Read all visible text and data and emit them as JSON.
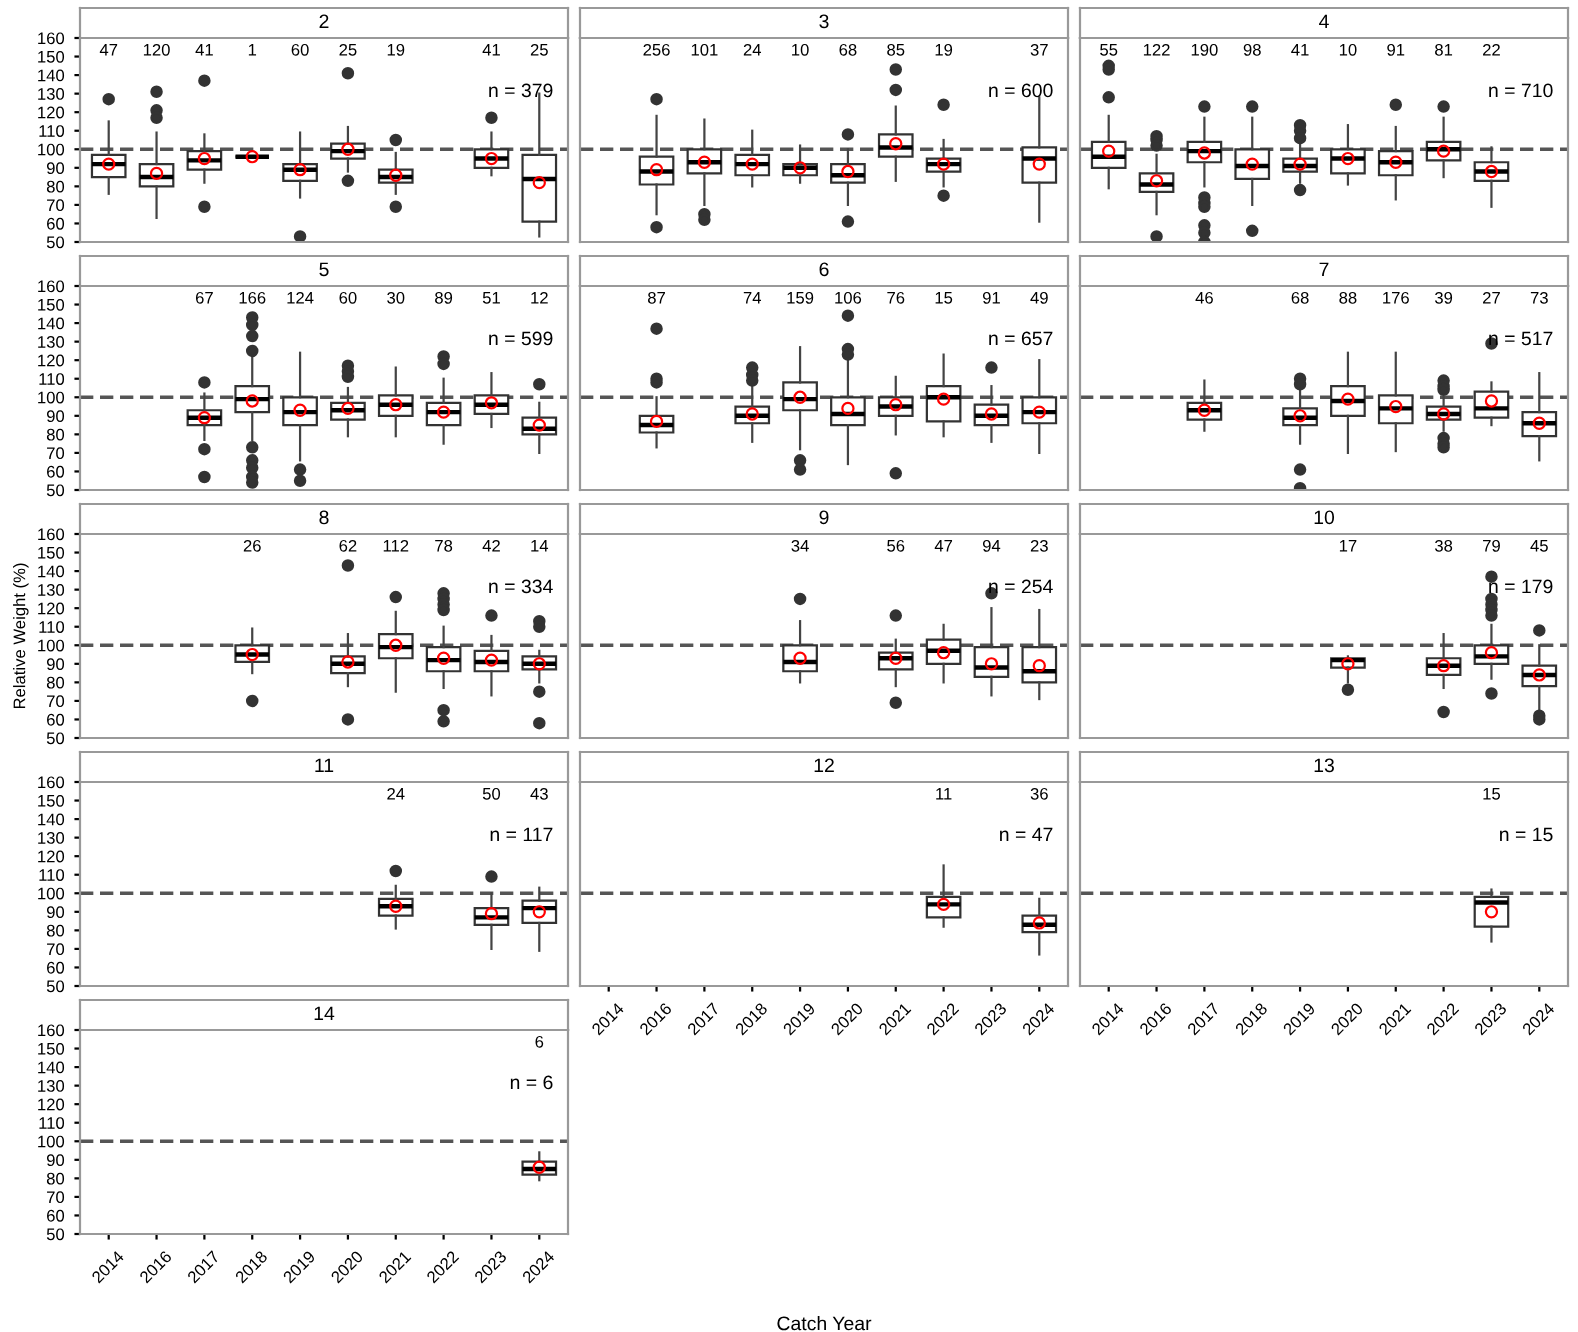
{
  "chart_data": [
    {
      "type": "box",
      "title": "2",
      "categories": [
        "2014",
        "2016",
        "2017",
        "2018",
        "2019",
        "2020",
        "2021",
        "2022",
        "2023",
        "2024"
      ],
      "ylim": [
        50,
        160
      ],
      "yticks": [
        50,
        60,
        70,
        80,
        90,
        100,
        110,
        120,
        130,
        140,
        150,
        160
      ],
      "tick_labels": "y",
      "value_labels": [
        "47",
        "120",
        "41",
        "1",
        "60",
        "25",
        "19",
        null,
        "41",
        "25"
      ],
      "annotations": [
        "n = 379"
      ],
      "ref_lines": [
        {
          "axis": "y",
          "value": 100,
          "line_style": "dashed"
        }
      ],
      "boxes": [
        {
          "low": 76,
          "q1": 85,
          "median": 92,
          "q3": 97,
          "high": 115,
          "mean": 92,
          "outliers": [
            127
          ]
        },
        {
          "low": 63,
          "q1": 80,
          "median": 85,
          "q3": 92,
          "high": 109,
          "mean": 87,
          "outliers": [
            131,
            121,
            117
          ]
        },
        {
          "low": 82,
          "q1": 89,
          "median": 94,
          "q3": 99,
          "high": 108,
          "mean": 95,
          "outliers": [
            137,
            69
          ]
        },
        {
          "low": 96,
          "q1": 96,
          "median": 96,
          "q3": 96,
          "high": 96,
          "mean": 96
        },
        {
          "low": 74,
          "q1": 83,
          "median": 89,
          "q3": 92,
          "high": 109,
          "mean": 89,
          "outliers": [
            53
          ]
        },
        {
          "low": 88,
          "q1": 95,
          "median": 99,
          "q3": 103,
          "high": 112,
          "mean": 100,
          "outliers": [
            141,
            83
          ]
        },
        {
          "low": 76,
          "q1": 82,
          "median": 85,
          "q3": 89,
          "high": 98,
          "mean": 86,
          "outliers": [
            105,
            69
          ]
        },
        null,
        {
          "low": 86,
          "q1": 90,
          "median": 95,
          "q3": 100,
          "high": 109,
          "mean": 95,
          "outliers": [
            117
          ]
        },
        {
          "low": 53,
          "q1": 61,
          "median": 84,
          "q3": 97,
          "high": 130,
          "mean": 82
        }
      ]
    },
    {
      "type": "box",
      "title": "3",
      "categories": [
        "2014",
        "2016",
        "2017",
        "2018",
        "2019",
        "2020",
        "2021",
        "2022",
        "2023",
        "2024"
      ],
      "ylim": [
        50,
        160
      ],
      "yticks": [
        50,
        60,
        70,
        80,
        90,
        100,
        110,
        120,
        130,
        140,
        150,
        160
      ],
      "tick_labels": false,
      "value_labels": [
        null,
        "256",
        "101",
        "24",
        "10",
        "68",
        "85",
        "19",
        null,
        "37"
      ],
      "annotations": [
        "n = 600"
      ],
      "ref_lines": [
        {
          "axis": "y",
          "value": 100,
          "line_style": "dashed"
        }
      ],
      "boxes": [
        null,
        {
          "low": 65,
          "q1": 81,
          "median": 88,
          "q3": 96,
          "high": 118,
          "mean": 89,
          "outliers": [
            127,
            58
          ]
        },
        {
          "low": 70,
          "q1": 87,
          "median": 93,
          "q3": 100,
          "high": 116,
          "mean": 93,
          "outliers": [
            65,
            62
          ]
        },
        {
          "low": 80,
          "q1": 86,
          "median": 92,
          "q3": 97,
          "high": 110,
          "mean": 92
        },
        {
          "low": 82,
          "q1": 86,
          "median": 90,
          "q3": 92,
          "high": 102,
          "mean": 90
        },
        {
          "low": 70,
          "q1": 82,
          "median": 86,
          "q3": 92,
          "high": 100,
          "mean": 88,
          "outliers": [
            108,
            61
          ]
        },
        {
          "low": 83,
          "q1": 96,
          "median": 101,
          "q3": 108,
          "high": 123,
          "mean": 103,
          "outliers": [
            143,
            132
          ]
        },
        {
          "low": 80,
          "q1": 88,
          "median": 92,
          "q3": 95,
          "high": 105,
          "mean": 92,
          "outliers": [
            124,
            75
          ]
        },
        null,
        {
          "low": 61,
          "q1": 82,
          "median": 95,
          "q3": 101,
          "high": 128,
          "mean": 92
        }
      ]
    },
    {
      "type": "box",
      "title": "4",
      "categories": [
        "2014",
        "2016",
        "2017",
        "2018",
        "2019",
        "2020",
        "2021",
        "2022",
        "2023",
        "2024"
      ],
      "ylim": [
        50,
        160
      ],
      "yticks": [
        50,
        60,
        70,
        80,
        90,
        100,
        110,
        120,
        130,
        140,
        150,
        160
      ],
      "tick_labels": false,
      "value_labels": [
        "55",
        "122",
        "190",
        "98",
        "41",
        "10",
        "91",
        "81",
        "22",
        null
      ],
      "annotations": [
        "n = 710"
      ],
      "ref_lines": [
        {
          "axis": "y",
          "value": 100,
          "line_style": "dashed"
        }
      ],
      "boxes": [
        {
          "low": 79,
          "q1": 90,
          "median": 96,
          "q3": 104,
          "high": 118,
          "mean": 99,
          "outliers": [
            145,
            143,
            128
          ]
        },
        {
          "low": 65,
          "q1": 77,
          "median": 81,
          "q3": 87,
          "high": 97,
          "mean": 83,
          "outliers": [
            107,
            105,
            102,
            53
          ]
        },
        {
          "low": 80,
          "q1": 93,
          "median": 99,
          "q3": 104,
          "high": 117,
          "mean": 98,
          "outliers": [
            123,
            74,
            71,
            69,
            59,
            55,
            50
          ]
        },
        {
          "low": 70,
          "q1": 84,
          "median": 91,
          "q3": 100,
          "high": 117,
          "mean": 92,
          "outliers": [
            123,
            56
          ]
        },
        {
          "low": 82,
          "q1": 88,
          "median": 91,
          "q3": 95,
          "high": 104,
          "mean": 92,
          "outliers": [
            113,
            110,
            106,
            78
          ]
        },
        {
          "low": 81,
          "q1": 87,
          "median": 95,
          "q3": 100,
          "high": 113,
          "mean": 95
        },
        {
          "low": 73,
          "q1": 86,
          "median": 93,
          "q3": 99,
          "high": 112,
          "mean": 93,
          "outliers": [
            124
          ]
        },
        {
          "low": 85,
          "q1": 94,
          "median": 100,
          "q3": 104,
          "high": 117,
          "mean": 99,
          "outliers": [
            123
          ]
        },
        {
          "low": 69,
          "q1": 83,
          "median": 88,
          "q3": 93,
          "high": 101,
          "mean": 88
        },
        null
      ]
    },
    {
      "type": "box",
      "title": "5",
      "categories": [
        "2014",
        "2016",
        "2017",
        "2018",
        "2019",
        "2020",
        "2021",
        "2022",
        "2023",
        "2024"
      ],
      "ylim": [
        50,
        160
      ],
      "yticks": [
        50,
        60,
        70,
        80,
        90,
        100,
        110,
        120,
        130,
        140,
        150,
        160
      ],
      "tick_labels": "y",
      "value_labels": [
        null,
        null,
        "67",
        "166",
        "124",
        "60",
        "30",
        "89",
        "51",
        "12"
      ],
      "annotations": [
        "n = 599"
      ],
      "ref_lines": [
        {
          "axis": "y",
          "value": 100,
          "line_style": "dashed"
        }
      ],
      "boxes": [
        null,
        null,
        {
          "low": 77,
          "q1": 85,
          "median": 89,
          "q3": 93,
          "high": 102,
          "mean": 89,
          "outliers": [
            108,
            72,
            57
          ]
        },
        {
          "low": 77,
          "q1": 92,
          "median": 99,
          "q3": 106,
          "high": 122,
          "mean": 98,
          "outliers": [
            143,
            139,
            133,
            125,
            73,
            66,
            62,
            57,
            54
          ]
        },
        {
          "low": 66,
          "q1": 85,
          "median": 92,
          "q3": 100,
          "high": 124,
          "mean": 93,
          "outliers": [
            61,
            55
          ]
        },
        {
          "low": 79,
          "q1": 88,
          "median": 93,
          "q3": 97,
          "high": 105,
          "mean": 94,
          "outliers": [
            117,
            114,
            111
          ]
        },
        {
          "low": 79,
          "q1": 90,
          "median": 96,
          "q3": 101,
          "high": 116,
          "mean": 96
        },
        {
          "low": 75,
          "q1": 85,
          "median": 92,
          "q3": 97,
          "high": 110,
          "mean": 92,
          "outliers": [
            122,
            118
          ]
        },
        {
          "low": 84,
          "q1": 91,
          "median": 96,
          "q3": 101,
          "high": 113,
          "mean": 97
        },
        {
          "low": 70,
          "q1": 80,
          "median": 83,
          "q3": 89,
          "high": 97,
          "mean": 85,
          "outliers": [
            107
          ]
        }
      ]
    },
    {
      "type": "box",
      "title": "6",
      "categories": [
        "2014",
        "2016",
        "2017",
        "2018",
        "2019",
        "2020",
        "2021",
        "2022",
        "2023",
        "2024"
      ],
      "ylim": [
        50,
        160
      ],
      "yticks": [
        50,
        60,
        70,
        80,
        90,
        100,
        110,
        120,
        130,
        140,
        150,
        160
      ],
      "tick_labels": false,
      "value_labels": [
        null,
        "87",
        null,
        "74",
        "159",
        "106",
        "76",
        "15",
        "91",
        "49"
      ],
      "annotations": [
        "n = 657"
      ],
      "ref_lines": [
        {
          "axis": "y",
          "value": 100,
          "line_style": "dashed"
        }
      ],
      "boxes": [
        null,
        {
          "low": 73,
          "q1": 81,
          "median": 85,
          "q3": 90,
          "high": 100,
          "mean": 87,
          "outliers": [
            137,
            110,
            108
          ]
        },
        null,
        {
          "low": 76,
          "q1": 86,
          "median": 90,
          "q3": 95,
          "high": 106,
          "mean": 91,
          "outliers": [
            116,
            112,
            109
          ]
        },
        {
          "low": 72,
          "q1": 93,
          "median": 99,
          "q3": 108,
          "high": 127,
          "mean": 100,
          "outliers": [
            66,
            61
          ]
        },
        {
          "low": 64,
          "q1": 85,
          "median": 91,
          "q3": 100,
          "high": 122,
          "mean": 94,
          "outliers": [
            144,
            126,
            123
          ]
        },
        {
          "low": 80,
          "q1": 90,
          "median": 95,
          "q3": 100,
          "high": 111,
          "mean": 96,
          "outliers": [
            59
          ]
        },
        {
          "low": 79,
          "q1": 87,
          "median": 100,
          "q3": 106,
          "high": 123,
          "mean": 99
        },
        {
          "low": 76,
          "q1": 85,
          "median": 90,
          "q3": 96,
          "high": 106,
          "mean": 91,
          "outliers": [
            116
          ]
        },
        {
          "low": 70,
          "q1": 86,
          "median": 92,
          "q3": 100,
          "high": 120,
          "mean": 92
        }
      ]
    },
    {
      "type": "box",
      "title": "7",
      "categories": [
        "2014",
        "2016",
        "2017",
        "2018",
        "2019",
        "2020",
        "2021",
        "2022",
        "2023",
        "2024"
      ],
      "ylim": [
        50,
        160
      ],
      "yticks": [
        50,
        60,
        70,
        80,
        90,
        100,
        110,
        120,
        130,
        140,
        150,
        160
      ],
      "tick_labels": false,
      "value_labels": [
        null,
        null,
        "46",
        null,
        "68",
        "88",
        "176",
        "39",
        "27",
        "73"
      ],
      "annotations": [
        "n = 517"
      ],
      "ref_lines": [
        {
          "axis": "y",
          "value": 100,
          "line_style": "dashed"
        }
      ],
      "boxes": [
        null,
        null,
        {
          "low": 82,
          "q1": 88,
          "median": 93,
          "q3": 97,
          "high": 109,
          "mean": 93
        },
        null,
        {
          "low": 75,
          "q1": 85,
          "median": 89,
          "q3": 94,
          "high": 104,
          "mean": 90,
          "outliers": [
            110,
            107,
            61,
            51
          ]
        },
        {
          "low": 70,
          "q1": 90,
          "median": 98,
          "q3": 106,
          "high": 124,
          "mean": 99
        },
        {
          "low": 71,
          "q1": 86,
          "median": 94,
          "q3": 101,
          "high": 124,
          "mean": 95
        },
        {
          "low": 82,
          "q1": 88,
          "median": 91,
          "q3": 95,
          "high": 100,
          "mean": 91,
          "outliers": [
            109,
            106,
            104,
            78,
            75,
            73
          ]
        },
        {
          "low": 85,
          "q1": 89,
          "median": 94,
          "q3": 103,
          "high": 108,
          "mean": 98,
          "outliers": [
            129
          ]
        },
        {
          "low": 66,
          "q1": 79,
          "median": 86,
          "q3": 92,
          "high": 113,
          "mean": 86
        }
      ]
    },
    {
      "type": "box",
      "title": "8",
      "ylabel": "Relative Weight (%)",
      "categories": [
        "2014",
        "2016",
        "2017",
        "2018",
        "2019",
        "2020",
        "2021",
        "2022",
        "2023",
        "2024"
      ],
      "ylim": [
        50,
        160
      ],
      "yticks": [
        50,
        60,
        70,
        80,
        90,
        100,
        110,
        120,
        130,
        140,
        150,
        160
      ],
      "tick_labels": "y",
      "value_labels": [
        null,
        null,
        null,
        "26",
        null,
        "62",
        "112",
        "78",
        "42",
        "14"
      ],
      "annotations": [
        "n = 334"
      ],
      "ref_lines": [
        {
          "axis": "y",
          "value": 100,
          "line_style": "dashed"
        }
      ],
      "boxes": [
        null,
        null,
        null,
        {
          "low": 85,
          "q1": 91,
          "median": 95,
          "q3": 100,
          "high": 109,
          "mean": 95,
          "outliers": [
            70
          ]
        },
        null,
        {
          "low": 78,
          "q1": 85,
          "median": 90,
          "q3": 94,
          "high": 106,
          "mean": 91,
          "outliers": [
            143,
            60
          ]
        },
        {
          "low": 75,
          "q1": 93,
          "median": 99,
          "q3": 106,
          "high": 118,
          "mean": 100,
          "outliers": [
            126
          ]
        },
        {
          "low": 77,
          "q1": 86,
          "median": 92,
          "q3": 99,
          "high": 110,
          "mean": 93,
          "outliers": [
            128,
            125,
            122,
            119,
            65,
            59
          ]
        },
        {
          "low": 73,
          "q1": 86,
          "median": 91,
          "q3": 97,
          "high": 105,
          "mean": 92,
          "outliers": [
            116
          ]
        },
        {
          "low": 80,
          "q1": 87,
          "median": 90,
          "q3": 94,
          "high": 97,
          "mean": 90,
          "outliers": [
            113,
            110,
            75,
            58
          ]
        }
      ]
    },
    {
      "type": "box",
      "title": "9",
      "categories": [
        "2014",
        "2016",
        "2017",
        "2018",
        "2019",
        "2020",
        "2021",
        "2022",
        "2023",
        "2024"
      ],
      "ylim": [
        50,
        160
      ],
      "yticks": [
        50,
        60,
        70,
        80,
        90,
        100,
        110,
        120,
        130,
        140,
        150,
        160
      ],
      "tick_labels": false,
      "value_labels": [
        null,
        null,
        null,
        null,
        "34",
        null,
        "56",
        "47",
        "94",
        "23"
      ],
      "annotations": [
        "n = 254"
      ],
      "ref_lines": [
        {
          "axis": "y",
          "value": 100,
          "line_style": "dashed"
        }
      ],
      "boxes": [
        null,
        null,
        null,
        null,
        {
          "low": 80,
          "q1": 86,
          "median": 91,
          "q3": 100,
          "high": 113,
          "mean": 93,
          "outliers": [
            125
          ]
        },
        null,
        {
          "low": 78,
          "q1": 87,
          "median": 93,
          "q3": 96,
          "high": 103,
          "mean": 93,
          "outliers": [
            116,
            69
          ]
        },
        {
          "low": 80,
          "q1": 90,
          "median": 97,
          "q3": 103,
          "high": 111,
          "mean": 96
        },
        {
          "low": 73,
          "q1": 83,
          "median": 88,
          "q3": 99,
          "high": 120,
          "mean": 90,
          "outliers": [
            128
          ]
        },
        {
          "low": 71,
          "q1": 80,
          "median": 86,
          "q3": 99,
          "high": 119,
          "mean": 89
        }
      ]
    },
    {
      "type": "box",
      "title": "10",
      "categories": [
        "2014",
        "2016",
        "2017",
        "2018",
        "2019",
        "2020",
        "2021",
        "2022",
        "2023",
        "2024"
      ],
      "ylim": [
        50,
        160
      ],
      "yticks": [
        50,
        60,
        70,
        80,
        90,
        100,
        110,
        120,
        130,
        140,
        150,
        160
      ],
      "tick_labels": false,
      "value_labels": [
        null,
        null,
        null,
        null,
        null,
        "17",
        null,
        "38",
        "79",
        "45"
      ],
      "annotations": [
        "n = 179"
      ],
      "ref_lines": [
        {
          "axis": "y",
          "value": 100,
          "line_style": "dashed"
        }
      ],
      "boxes": [
        null,
        null,
        null,
        null,
        null,
        {
          "low": 80,
          "q1": 88,
          "median": 92,
          "q3": 93,
          "high": 94,
          "mean": 90,
          "outliers": [
            76
          ]
        },
        null,
        {
          "low": 77,
          "q1": 84,
          "median": 89,
          "q3": 93,
          "high": 106,
          "mean": 89,
          "outliers": [
            64
          ]
        },
        {
          "low": 82,
          "q1": 90,
          "median": 94,
          "q3": 100,
          "high": 111,
          "mean": 96,
          "outliers": [
            137,
            125,
            122,
            119,
            116,
            74
          ]
        },
        {
          "low": 65,
          "q1": 78,
          "median": 84,
          "q3": 89,
          "high": 100,
          "mean": 84,
          "outliers": [
            108,
            62,
            60
          ]
        }
      ]
    },
    {
      "type": "box",
      "title": "11",
      "categories": [
        "2014",
        "2016",
        "2017",
        "2018",
        "2019",
        "2020",
        "2021",
        "2022",
        "2023",
        "2024"
      ],
      "ylim": [
        50,
        160
      ],
      "yticks": [
        50,
        60,
        70,
        80,
        90,
        100,
        110,
        120,
        130,
        140,
        150,
        160
      ],
      "tick_labels": "y",
      "value_labels": [
        null,
        null,
        null,
        null,
        null,
        null,
        "24",
        null,
        "50",
        "43"
      ],
      "annotations": [
        "n = 117"
      ],
      "ref_lines": [
        {
          "axis": "y",
          "value": 100,
          "line_style": "dashed"
        }
      ],
      "boxes": [
        null,
        null,
        null,
        null,
        null,
        null,
        {
          "low": 81,
          "q1": 88,
          "median": 93,
          "q3": 97,
          "high": 104,
          "mean": 93,
          "outliers": [
            112
          ]
        },
        null,
        {
          "low": 70,
          "q1": 83,
          "median": 87,
          "q3": 92,
          "high": 100,
          "mean": 89,
          "outliers": [
            109
          ]
        },
        {
          "low": 69,
          "q1": 84,
          "median": 92,
          "q3": 96,
          "high": 103,
          "mean": 90
        }
      ]
    },
    {
      "type": "box",
      "title": "12",
      "xlabel": "Catch Year",
      "categories": [
        "2014",
        "2016",
        "2017",
        "2018",
        "2019",
        "2020",
        "2021",
        "2022",
        "2023",
        "2024"
      ],
      "ylim": [
        50,
        160
      ],
      "yticks": [
        50,
        60,
        70,
        80,
        90,
        100,
        110,
        120,
        130,
        140,
        150,
        160
      ],
      "tick_labels": "x",
      "value_labels": [
        null,
        null,
        null,
        null,
        null,
        null,
        null,
        "11",
        null,
        "36"
      ],
      "annotations": [
        "n = 47"
      ],
      "ref_lines": [
        {
          "axis": "y",
          "value": 100,
          "line_style": "dashed"
        }
      ],
      "boxes": [
        null,
        null,
        null,
        null,
        null,
        null,
        null,
        {
          "low": 82,
          "q1": 87,
          "median": 94,
          "q3": 98,
          "high": 115,
          "mean": 94
        },
        null,
        {
          "low": 67,
          "q1": 79,
          "median": 83,
          "q3": 88,
          "high": 97,
          "mean": 84
        }
      ]
    },
    {
      "type": "box",
      "title": "13",
      "categories": [
        "2014",
        "2016",
        "2017",
        "2018",
        "2019",
        "2020",
        "2021",
        "2022",
        "2023",
        "2024"
      ],
      "ylim": [
        50,
        160
      ],
      "yticks": [
        50,
        60,
        70,
        80,
        90,
        100,
        110,
        120,
        130,
        140,
        150,
        160
      ],
      "tick_labels": "x",
      "value_labels": [
        null,
        null,
        null,
        null,
        null,
        null,
        null,
        null,
        "15",
        null
      ],
      "annotations": [
        "n = 15"
      ],
      "ref_lines": [
        {
          "axis": "y",
          "value": 100,
          "line_style": "dashed"
        }
      ],
      "boxes": [
        null,
        null,
        null,
        null,
        null,
        null,
        null,
        null,
        {
          "low": 74,
          "q1": 82,
          "median": 95,
          "q3": 98,
          "high": 102,
          "mean": 90
        },
        null
      ]
    },
    {
      "type": "box",
      "title": "14",
      "categories": [
        "2014",
        "2016",
        "2017",
        "2018",
        "2019",
        "2020",
        "2021",
        "2022",
        "2023",
        "2024"
      ],
      "ylim": [
        50,
        160
      ],
      "yticks": [
        50,
        60,
        70,
        80,
        90,
        100,
        110,
        120,
        130,
        140,
        150,
        160
      ],
      "value_labels": [
        null,
        null,
        null,
        null,
        null,
        null,
        null,
        null,
        null,
        "6"
      ],
      "annotations": [
        "n = 6"
      ],
      "ref_lines": [
        {
          "axis": "y",
          "value": 100,
          "line_style": "dashed"
        }
      ],
      "boxes": [
        null,
        null,
        null,
        null,
        null,
        null,
        null,
        null,
        null,
        {
          "low": 79,
          "q1": 82,
          "median": 85,
          "q3": 89,
          "high": 94,
          "mean": 86
        }
      ]
    }
  ]
}
